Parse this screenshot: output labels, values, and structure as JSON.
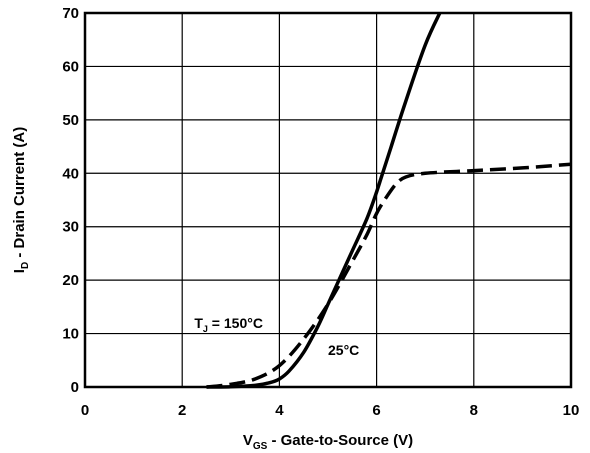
{
  "chart_data": {
    "type": "line",
    "xlabel": {
      "main": "V",
      "sub": "GS",
      "rest": " - Gate-to-Source (V)"
    },
    "ylabel": {
      "main": "I",
      "sub": "D",
      "rest": " - Drain Current (A)"
    },
    "xlim": [
      0,
      10
    ],
    "ylim": [
      0,
      70
    ],
    "xticks": [
      0,
      2,
      4,
      6,
      8,
      10
    ],
    "yticks": [
      0,
      10,
      20,
      30,
      40,
      50,
      60,
      70
    ],
    "grid": true,
    "series": [
      {
        "style": "solid",
        "color": "#000000",
        "x": [
          2.5,
          3.0,
          3.5,
          3.8,
          4.0,
          4.2,
          4.5,
          4.8,
          5.0,
          5.2,
          5.5,
          5.8,
          6.0,
          6.3,
          6.6,
          7.0,
          7.3
        ],
        "y": [
          0,
          0.05,
          0.3,
          0.8,
          1.5,
          3.0,
          6.5,
          11.5,
          15.5,
          19.5,
          25.5,
          31.5,
          36.5,
          45.0,
          53.5,
          64.0,
          70.0
        ]
      },
      {
        "style": "dashed",
        "color": "#000000",
        "x": [
          2.5,
          3.0,
          3.5,
          4.0,
          4.5,
          5.0,
          5.5,
          5.8,
          6.0,
          6.2,
          6.4,
          6.6,
          7.0,
          8.0,
          9.0,
          10.0
        ],
        "y": [
          0,
          0.5,
          1.5,
          4.0,
          9.0,
          15.5,
          23.5,
          28.5,
          32.5,
          35.5,
          38.0,
          39.3,
          40.0,
          40.5,
          41.0,
          41.7
        ]
      }
    ],
    "annotations": [
      {
        "main": "T",
        "sub": "J",
        "rest": " = 150°C",
        "x": 2.25,
        "y": 11
      },
      {
        "text": "25°C",
        "x": 5.0,
        "y": 6
      }
    ]
  }
}
